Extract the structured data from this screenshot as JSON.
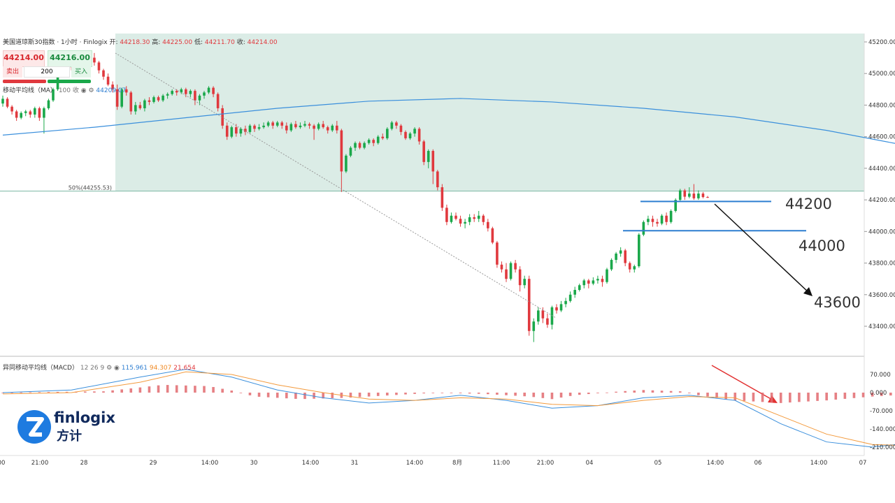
{
  "header": {
    "symbol": "美国道琼斯30指数 · 1小时 · Finlogix",
    "open_label": "开:",
    "open": "44218.30",
    "high_label": "高:",
    "high": "44225.00",
    "low_label": "低:",
    "low": "44211.70",
    "close_label": "收:",
    "close": "44214.00"
  },
  "trade": {
    "sell_price": "44214.00",
    "buy_price": "44216.00",
    "sell_label": "卖出",
    "quantity": "200",
    "buy_label": "买入"
  },
  "ma_legend": {
    "label": "移动平均线（MA）",
    "params": "100 收",
    "value": "44209.07"
  },
  "macd_legend": {
    "label": "异同移动平均线（MACD）",
    "params": "12 26 9",
    "macd": "115.961",
    "signal": "94.307",
    "hist": "21.654"
  },
  "logo": {
    "text": "finlogix",
    "cn": "方计"
  },
  "colors": {
    "up": "#1aa84a",
    "down": "#e0393e",
    "ma": "#3a8fdc",
    "signal": "#f39a3c",
    "zone": "#cfe6de",
    "annotation_line": "#2e7fd0"
  },
  "chart_data": {
    "type": "candlestick",
    "price_axis": {
      "min": 43300,
      "max": 45200,
      "ticks": [
        "45200.00",
        "45000.00",
        "44800.00",
        "44600.00",
        "44400.00",
        "44200.00",
        "44000.00",
        "43800.00",
        "43600.00",
        "43400.00"
      ]
    },
    "macd_axis": {
      "min": -220,
      "max": 110,
      "ticks": [
        "70.000",
        "0.000",
        "-70.000",
        "-140.000",
        "-210.000"
      ]
    },
    "time_labels": [
      "00",
      "21:00",
      "28",
      "29",
      "14:00",
      "30",
      "14:00",
      "31",
      "14:00",
      "8月",
      "11:00",
      "21:00",
      "04",
      "05",
      "14:00",
      "06",
      "14:00",
      "07"
    ],
    "fib_label": "50%(44255.53)",
    "fib_level": 44255.53,
    "annotations": [
      {
        "text": "44200",
        "level": 44190
      },
      {
        "text": "44000",
        "level": 44005
      },
      {
        "text": "43600",
        "level": 43600
      }
    ],
    "candles": [
      [
        44810,
        44840,
        44860,
        44790
      ],
      [
        44840,
        44790,
        44850,
        44780
      ],
      [
        44790,
        44760,
        44800,
        44740
      ],
      [
        44760,
        44720,
        44770,
        44700
      ],
      [
        44720,
        44750,
        44760,
        44710
      ],
      [
        44750,
        44760,
        44770,
        44730
      ],
      [
        44760,
        44740,
        44770,
        44720
      ],
      [
        44740,
        44780,
        44790,
        44720
      ],
      [
        44780,
        44720,
        44790,
        44700
      ],
      [
        44720,
        44780,
        44790,
        44620
      ],
      [
        44780,
        44830,
        44840,
        44770
      ],
      [
        44830,
        44900,
        44910,
        44820
      ],
      [
        44900,
        45010,
        45020,
        44890
      ],
      [
        45010,
        45040,
        45050,
        45000
      ],
      [
        45040,
        45050,
        45060,
        45030
      ],
      [
        45050,
        45040,
        45060,
        45020
      ],
      [
        45040,
        45060,
        45070,
        45030
      ],
      [
        45060,
        45070,
        45080,
        45050
      ],
      [
        45070,
        45080,
        45090,
        45060
      ],
      [
        45080,
        45100,
        45110,
        45070
      ],
      [
        45100,
        45070,
        45130,
        45050
      ],
      [
        45070,
        45020,
        45080,
        45000
      ],
      [
        45020,
        44980,
        45030,
        44960
      ],
      [
        44980,
        44930,
        45000,
        44920
      ],
      [
        44930,
        44900,
        44950,
        44880
      ],
      [
        44900,
        44790,
        44930,
        44770
      ],
      [
        44790,
        44900,
        44910,
        44780
      ],
      [
        44900,
        44880,
        44920,
        44860
      ],
      [
        44880,
        44760,
        44890,
        44740
      ],
      [
        44760,
        44800,
        44820,
        44740
      ],
      [
        44800,
        44780,
        44820,
        44770
      ],
      [
        44780,
        44830,
        44840,
        44760
      ],
      [
        44830,
        44820,
        44850,
        44800
      ],
      [
        44820,
        44850,
        44860,
        44810
      ],
      [
        44850,
        44830,
        44860,
        44820
      ],
      [
        44830,
        44860,
        44870,
        44820
      ],
      [
        44860,
        44870,
        44880,
        44840
      ],
      [
        44870,
        44890,
        44900,
        44860
      ],
      [
        44890,
        44880,
        44900,
        44860
      ],
      [
        44880,
        44900,
        44910,
        44870
      ],
      [
        44900,
        44870,
        44910,
        44850
      ],
      [
        44870,
        44890,
        44900,
        44850
      ],
      [
        44890,
        44830,
        44900,
        44800
      ],
      [
        44830,
        44860,
        44870,
        44800
      ],
      [
        44860,
        44880,
        44890,
        44840
      ],
      [
        44880,
        44910,
        44920,
        44870
      ],
      [
        44910,
        44870,
        44920,
        44850
      ],
      [
        44870,
        44780,
        44880,
        44760
      ],
      [
        44780,
        44670,
        44800,
        44650
      ],
      [
        44670,
        44600,
        44690,
        44580
      ],
      [
        44600,
        44660,
        44670,
        44590
      ],
      [
        44660,
        44620,
        44680,
        44600
      ],
      [
        44620,
        44650,
        44660,
        44600
      ],
      [
        44650,
        44630,
        44670,
        44610
      ],
      [
        44630,
        44670,
        44680,
        44620
      ],
      [
        44670,
        44650,
        44680,
        44630
      ],
      [
        44650,
        44660,
        44680,
        44640
      ],
      [
        44660,
        44670,
        44690,
        44650
      ],
      [
        44670,
        44690,
        44700,
        44660
      ],
      [
        44690,
        44670,
        44700,
        44650
      ],
      [
        44670,
        44690,
        44700,
        44660
      ],
      [
        44690,
        44670,
        44700,
        44650
      ],
      [
        44670,
        44640,
        44690,
        44620
      ],
      [
        44640,
        44680,
        44690,
        44630
      ],
      [
        44680,
        44660,
        44700,
        44650
      ],
      [
        44660,
        44670,
        44690,
        44650
      ],
      [
        44670,
        44680,
        44700,
        44660
      ],
      [
        44680,
        44670,
        44690,
        44650
      ],
      [
        44670,
        44650,
        44680,
        44580
      ],
      [
        44650,
        44680,
        44690,
        44640
      ],
      [
        44680,
        44660,
        44700,
        44650
      ],
      [
        44660,
        44640,
        44670,
        44620
      ],
      [
        44640,
        44670,
        44680,
        44630
      ],
      [
        44670,
        44640,
        44700,
        44620
      ],
      [
        44640,
        44380,
        44650,
        44250
      ],
      [
        44380,
        44480,
        44490,
        44370
      ],
      [
        44480,
        44530,
        44540,
        44470
      ],
      [
        44530,
        44560,
        44570,
        44510
      ],
      [
        44560,
        44530,
        44570,
        44520
      ],
      [
        44530,
        44560,
        44570,
        44520
      ],
      [
        44560,
        44580,
        44590,
        44550
      ],
      [
        44580,
        44560,
        44590,
        44540
      ],
      [
        44560,
        44600,
        44610,
        44550
      ],
      [
        44600,
        44590,
        44620,
        44580
      ],
      [
        44590,
        44650,
        44660,
        44580
      ],
      [
        44650,
        44690,
        44700,
        44640
      ],
      [
        44690,
        44670,
        44700,
        44650
      ],
      [
        44670,
        44630,
        44680,
        44610
      ],
      [
        44630,
        44590,
        44640,
        44580
      ],
      [
        44590,
        44620,
        44630,
        44580
      ],
      [
        44620,
        44650,
        44660,
        44600
      ],
      [
        44650,
        44570,
        44660,
        44550
      ],
      [
        44570,
        44440,
        44580,
        44420
      ],
      [
        44440,
        44510,
        44520,
        44400
      ],
      [
        44510,
        44380,
        44520,
        44300
      ],
      [
        44380,
        44280,
        44390,
        44260
      ],
      [
        44280,
        44150,
        44300,
        44130
      ],
      [
        44150,
        44060,
        44170,
        44040
      ],
      [
        44060,
        44100,
        44120,
        44050
      ],
      [
        44100,
        44080,
        44120,
        44070
      ],
      [
        44080,
        44050,
        44100,
        44030
      ],
      [
        44050,
        44060,
        44080,
        44020
      ],
      [
        44060,
        44090,
        44110,
        44040
      ],
      [
        44090,
        44080,
        44110,
        44060
      ],
      [
        44080,
        44100,
        44130,
        44060
      ],
      [
        44100,
        44060,
        44110,
        44040
      ],
      [
        44060,
        44020,
        44080,
        44000
      ],
      [
        44020,
        43930,
        44030,
        43920
      ],
      [
        43930,
        43790,
        43940,
        43770
      ],
      [
        43790,
        43760,
        43810,
        43740
      ],
      [
        43760,
        43700,
        43800,
        43680
      ],
      [
        43700,
        43800,
        43810,
        43690
      ],
      [
        43800,
        43760,
        43820,
        43740
      ],
      [
        43760,
        43660,
        43780,
        43620
      ],
      [
        43660,
        43700,
        43720,
        43640
      ],
      [
        43700,
        43370,
        43720,
        43340
      ],
      [
        43370,
        43430,
        43450,
        43300
      ],
      [
        43430,
        43500,
        43520,
        43410
      ],
      [
        43500,
        43450,
        43520,
        43420
      ],
      [
        43450,
        43410,
        43480,
        43390
      ],
      [
        43410,
        43520,
        43530,
        43380
      ],
      [
        43520,
        43500,
        43540,
        43480
      ],
      [
        43500,
        43540,
        43560,
        43490
      ],
      [
        43540,
        43560,
        43580,
        43520
      ],
      [
        43560,
        43600,
        43620,
        43550
      ],
      [
        43600,
        43630,
        43650,
        43580
      ],
      [
        43630,
        43660,
        43670,
        43620
      ],
      [
        43660,
        43690,
        43700,
        43640
      ],
      [
        43690,
        43670,
        43700,
        43640
      ],
      [
        43670,
        43690,
        43710,
        43660
      ],
      [
        43690,
        43700,
        43720,
        43670
      ],
      [
        43700,
        43680,
        43720,
        43650
      ],
      [
        43680,
        43760,
        43770,
        43670
      ],
      [
        43760,
        43820,
        43830,
        43750
      ],
      [
        43820,
        43860,
        43870,
        43800
      ],
      [
        43860,
        43880,
        43900,
        43840
      ],
      [
        43880,
        43800,
        43890,
        43780
      ],
      [
        43800,
        43760,
        43810,
        43740
      ],
      [
        43760,
        43780,
        43790,
        43740
      ],
      [
        43780,
        43980,
        43990,
        43770
      ],
      [
        43980,
        44060,
        44070,
        43970
      ],
      [
        44060,
        44080,
        44100,
        44040
      ],
      [
        44080,
        44060,
        44100,
        44030
      ],
      [
        44060,
        44050,
        44080,
        44030
      ],
      [
        44050,
        44100,
        44110,
        44040
      ],
      [
        44100,
        44060,
        44120,
        44040
      ],
      [
        44060,
        44130,
        44140,
        44050
      ],
      [
        44130,
        44200,
        44210,
        44120
      ],
      [
        44200,
        44260,
        44270,
        44190
      ],
      [
        44260,
        44220,
        44270,
        44200
      ],
      [
        44220,
        44240,
        44280,
        44210
      ],
      [
        44240,
        44210,
        44300,
        44200
      ],
      [
        44210,
        44240,
        44260,
        44200
      ],
      [
        44240,
        44218,
        44250,
        44210
      ],
      [
        44218,
        44214,
        44225,
        44212
      ]
    ],
    "ma": [
      [
        0,
        44610
      ],
      [
        20,
        44660
      ],
      [
        40,
        44720
      ],
      [
        60,
        44780
      ],
      [
        80,
        44825
      ],
      [
        100,
        44842
      ],
      [
        120,
        44820
      ],
      [
        140,
        44780
      ],
      [
        160,
        44725
      ],
      [
        180,
        44640
      ],
      [
        200,
        44530
      ],
      [
        220,
        44400
      ],
      [
        230,
        44330
      ],
      [
        240,
        44255
      ],
      [
        246,
        44210
      ]
    ],
    "macd_line": [
      [
        0,
        0
      ],
      [
        15,
        10
      ],
      [
        30,
        60
      ],
      [
        40,
        90
      ],
      [
        50,
        60
      ],
      [
        60,
        10
      ],
      [
        70,
        -20
      ],
      [
        80,
        -40
      ],
      [
        90,
        -30
      ],
      [
        100,
        -10
      ],
      [
        110,
        -30
      ],
      [
        120,
        -60
      ],
      [
        130,
        -50
      ],
      [
        140,
        -20
      ],
      [
        150,
        -10
      ],
      [
        160,
        -30
      ],
      [
        170,
        -120
      ],
      [
        180,
        -190
      ],
      [
        190,
        -210
      ],
      [
        200,
        -190
      ],
      [
        210,
        -120
      ],
      [
        220,
        -50
      ],
      [
        230,
        30
      ],
      [
        240,
        90
      ],
      [
        248,
        115.961
      ]
    ],
    "signal_line": [
      [
        0,
        -5
      ],
      [
        15,
        0
      ],
      [
        30,
        40
      ],
      [
        40,
        80
      ],
      [
        50,
        70
      ],
      [
        60,
        30
      ],
      [
        70,
        0
      ],
      [
        80,
        -25
      ],
      [
        90,
        -30
      ],
      [
        100,
        -20
      ],
      [
        110,
        -25
      ],
      [
        120,
        -45
      ],
      [
        130,
        -50
      ],
      [
        140,
        -30
      ],
      [
        150,
        -15
      ],
      [
        160,
        -20
      ],
      [
        170,
        -90
      ],
      [
        180,
        -160
      ],
      [
        190,
        -200
      ],
      [
        200,
        -205
      ],
      [
        210,
        -150
      ],
      [
        220,
        -80
      ],
      [
        230,
        0
      ],
      [
        240,
        60
      ],
      [
        248,
        94.307
      ]
    ],
    "macd_hist_bars": {
      "start": 90,
      "end": 248,
      "count": 130
    },
    "macd_hist_values": [
      [
        0,
        0
      ],
      [
        22,
        5
      ],
      [
        30,
        20
      ],
      [
        35,
        30
      ],
      [
        45,
        25
      ],
      [
        50,
        8
      ],
      [
        55,
        -15
      ],
      [
        65,
        -25
      ],
      [
        75,
        -20
      ],
      [
        85,
        -10
      ],
      [
        95,
        0
      ],
      [
        105,
        -5
      ],
      [
        115,
        -15
      ],
      [
        120,
        -25
      ],
      [
        125,
        -10
      ],
      [
        135,
        5
      ],
      [
        140,
        10
      ],
      [
        148,
        5
      ],
      [
        152,
        -10
      ],
      [
        160,
        -30
      ],
      [
        170,
        -40
      ],
      [
        180,
        -30
      ],
      [
        190,
        -15
      ],
      [
        200,
        -5
      ],
      [
        205,
        15
      ],
      [
        210,
        30
      ],
      [
        220,
        35
      ],
      [
        225,
        30
      ],
      [
        230,
        20
      ],
      [
        235,
        25
      ],
      [
        240,
        30
      ],
      [
        245,
        25
      ],
      [
        248,
        21.654
      ]
    ]
  }
}
